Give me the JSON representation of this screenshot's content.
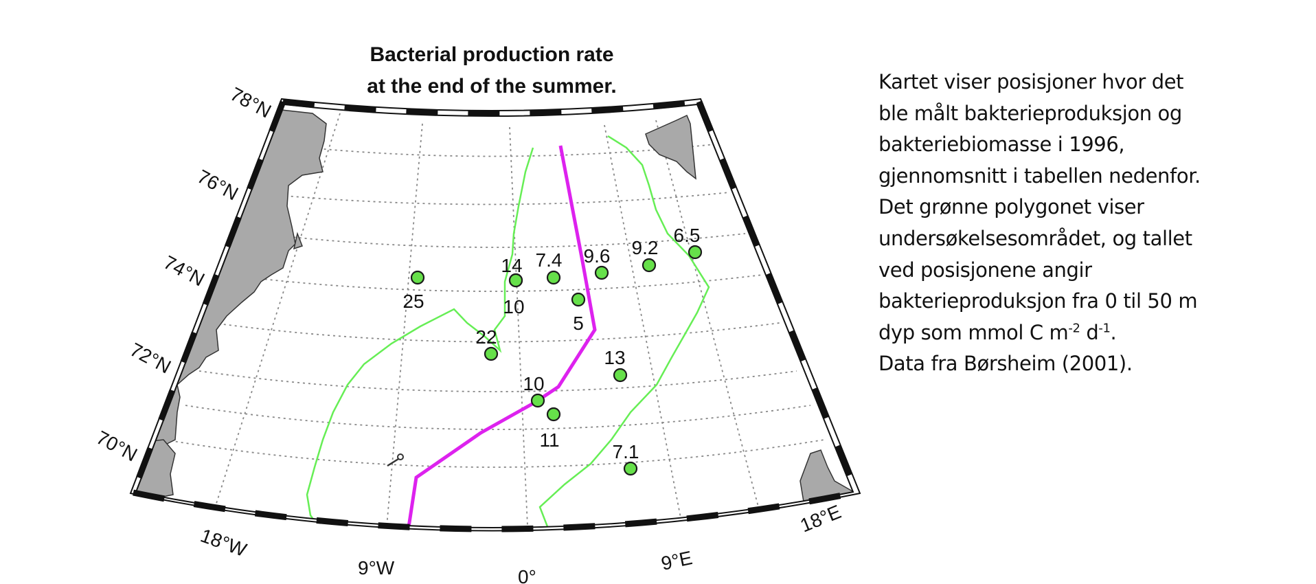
{
  "map": {
    "title_line1": "Bacterial production rate",
    "title_line2": "at the end of the summer.",
    "lat_labels": [
      {
        "key": "78",
        "text": "78°N"
      },
      {
        "key": "76",
        "text": "76°N"
      },
      {
        "key": "74",
        "text": "74°N"
      },
      {
        "key": "72",
        "text": "72°N"
      },
      {
        "key": "70",
        "text": "70°N"
      }
    ],
    "lon_labels": [
      {
        "key": "18w",
        "text": "18°W"
      },
      {
        "key": "9w",
        "text": "9°W"
      },
      {
        "key": "0",
        "text": "0°"
      },
      {
        "key": "9e",
        "text": "9°E"
      },
      {
        "key": "18e",
        "text": "18°E"
      }
    ],
    "colors": {
      "land": "#a9a9a9",
      "station_fill": "#66e04a",
      "survey_polygon": "#66ee55",
      "transect": "#dd22ee",
      "frame_dark": "#000000",
      "graticule": "#888888"
    },
    "stations": [
      {
        "label": "25"
      },
      {
        "label": "14"
      },
      {
        "label": "10"
      },
      {
        "label": "7.4"
      },
      {
        "label": "9.6"
      },
      {
        "label": "9.2"
      },
      {
        "label": "6.5"
      },
      {
        "label": "5"
      },
      {
        "label": "22"
      },
      {
        "label": "13"
      },
      {
        "label": "10"
      },
      {
        "label": "11"
      },
      {
        "label": "7.1"
      }
    ]
  },
  "caption": {
    "line1": "Kartet viser posisjoner hvor det",
    "line2": "ble målt bakterieproduksjon  og",
    "line3": "bakteriebiomasse i 1996,",
    "line4": "gjennomsnitt  i tabellen nedenfor.",
    "line5": "Det grønne polygonet  viser",
    "line6": "undersøkelsesområdet,  og tallet",
    "line7": "ved posisjonene angir",
    "line8": "bakterieproduksjon   fra 0 til 50 m",
    "line9_a": "dyp som  mmol  C m",
    "line9_sup1": "-2",
    "line9_b": "  d",
    "line9_sup2": "-1",
    "line9_c": ".",
    "line10": "Data fra Børsheim (2001)."
  }
}
